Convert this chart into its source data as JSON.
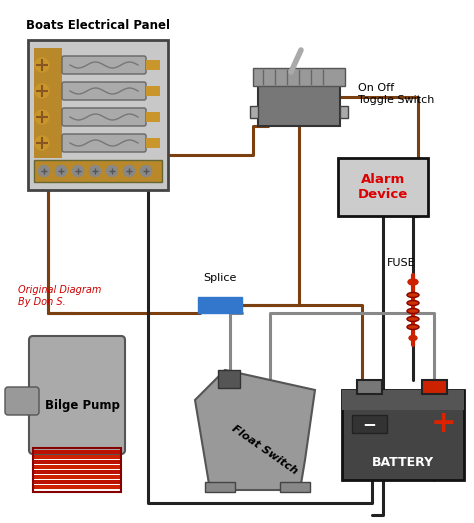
{
  "background_color": "#ffffff",
  "wire_brown": "#7B3F10",
  "wire_black": "#222222",
  "wire_gray": "#888888",
  "panel_bg": "#c8c8c8",
  "panel_border": "#555555",
  "panel_inner_bg": "#c0a060",
  "alarm_text_color": "#dd0000",
  "splice_color": "#3377cc",
  "fuse_color": "#cc2200",
  "label_panel": "Boats Electrical Panel",
  "label_switch": "On Off\nToggle Switch",
  "label_alarm": "Alarm\nDevice",
  "label_pump": "Bilge Pump",
  "label_float": "Float Switch",
  "label_battery": "BATTERY",
  "label_fuse": "FUSE",
  "label_splice": "Splice",
  "label_credit": "Original Diagram\nBy Don S."
}
